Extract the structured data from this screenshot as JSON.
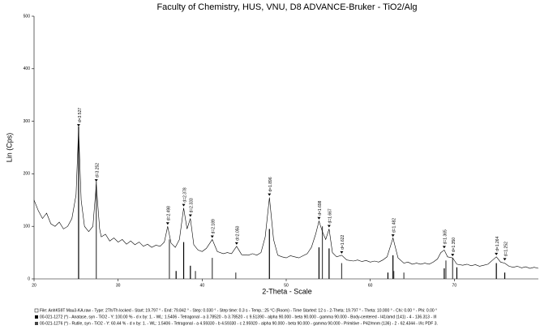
{
  "chart_data": {
    "type": "line",
    "title": "Faculty of Chemistry, HUS, VNU, D8 ADVANCE-Bruker - TiO2/Alg",
    "xlabel": "2-Theta - Scale",
    "ylabel": "Lin (Cps)",
    "xlim": [
      20,
      80
    ],
    "xticks": [
      20,
      30,
      40,
      50,
      60,
      70
    ],
    "ylim": [
      0,
      500
    ],
    "yticks": [
      0,
      100,
      200,
      300,
      400,
      500
    ],
    "color": "#000000",
    "x": [
      20,
      20.5,
      21,
      21.5,
      22,
      22.5,
      23,
      23.5,
      24,
      24.5,
      25,
      25.3,
      25.6,
      26,
      26.5,
      27,
      27.4,
      27.8,
      28,
      28.5,
      29,
      29.5,
      30,
      30.5,
      31,
      31.5,
      32,
      32.5,
      33,
      33.5,
      34,
      34.5,
      35,
      35.5,
      35.9,
      36.3,
      36.8,
      37.3,
      37.8,
      38.2,
      38.6,
      39,
      39.5,
      40,
      40.5,
      41.2,
      41.8,
      42.5,
      43,
      43.5,
      44.1,
      44.7,
      45.5,
      46,
      46.5,
      47,
      47.5,
      48,
      48.5,
      49,
      49.5,
      50,
      50.5,
      51,
      51.5,
      52,
      52.5,
      53,
      53.5,
      53.9,
      54.3,
      54.7,
      55.1,
      55.5,
      56,
      56.6,
      57.2,
      58,
      58.5,
      59,
      59.5,
      60,
      60.5,
      61,
      61.5,
      62,
      62.7,
      63.3,
      64,
      64.5,
      65,
      65.5,
      66,
      66.5,
      67,
      67.5,
      68,
      68.4,
      68.8,
      69.2,
      69.8,
      70.3,
      71,
      71.5,
      72,
      72.5,
      73,
      73.5,
      74,
      74.5,
      75,
      75.5,
      76,
      76.5,
      77,
      77.5,
      78,
      78.5,
      79,
      79.5,
      80
    ],
    "values": [
      150,
      130,
      115,
      125,
      105,
      100,
      108,
      95,
      100,
      115,
      160,
      285,
      150,
      100,
      90,
      100,
      180,
      95,
      80,
      85,
      72,
      78,
      70,
      75,
      66,
      72,
      65,
      70,
      62,
      66,
      60,
      64,
      62,
      70,
      100,
      68,
      60,
      75,
      135,
      95,
      115,
      65,
      55,
      52,
      58,
      75,
      52,
      48,
      50,
      48,
      62,
      46,
      45,
      48,
      45,
      50,
      80,
      155,
      75,
      45,
      42,
      40,
      44,
      42,
      40,
      44,
      48,
      60,
      85,
      110,
      90,
      75,
      95,
      50,
      42,
      45,
      36,
      34,
      36,
      33,
      35,
      32,
      34,
      32,
      36,
      42,
      78,
      40,
      30,
      32,
      28,
      30,
      28,
      30,
      28,
      32,
      38,
      50,
      55,
      42,
      40,
      28,
      26,
      28,
      25,
      27,
      24,
      26,
      28,
      35,
      42,
      32,
      30,
      24,
      22,
      24,
      21,
      23,
      20,
      22,
      20
    ],
    "references": [
      {
        "name": "00-021-1272 (*) - Anatase, syn - TiO2 - Y: 100.00 % - d x by: 1. - WL: 1.5406 - Tetragonal - a 3.78520 - b 3.78520 - c 9.51390 - alpha 90.000 - beta 90.000 - gamma 90.000 - Body-centered - I41/amd (141) - 4 - 136.313 - I/I",
        "color": "#000000",
        "x": [
          25.3,
          36.9,
          37.8,
          38.6,
          48.0,
          53.9,
          55.1,
          62.1,
          62.7,
          68.8,
          70.3,
          75.0,
          76.0
        ],
        "values": [
          290,
          15,
          70,
          25,
          95,
          60,
          58,
          12,
          45,
          20,
          22,
          30,
          12
        ]
      },
      {
        "name": "00-021-1276 (*) - Rutile, syn - TiO2 - Y: 60.44 % - d x by: 1. - WL: 1.5406 - Tetragonal - a 4.59330 - b 4.59330 - c 2.95920 - alpha 90.000 - beta 90.000 - gamma 90.000 - Primitive - P42/mnm (136) - 2 - 62.4344 - I/Ic PDF 3.",
        "color": "#444444",
        "x": [
          27.4,
          36.1,
          39.2,
          41.2,
          44.0,
          54.3,
          56.6,
          62.8,
          64.0,
          69.0,
          69.8
        ],
        "values": [
          185,
          75,
          15,
          40,
          12,
          100,
          30,
          15,
          12,
          35,
          40
        ]
      }
    ],
    "annotations": [
      {
        "x": 25.3,
        "y": 290,
        "label": "d=3.527"
      },
      {
        "x": 27.4,
        "y": 185,
        "label": "d=3.252"
      },
      {
        "x": 35.9,
        "y": 103,
        "label": "d=2.498"
      },
      {
        "x": 37.8,
        "y": 138,
        "label": "d=2.378"
      },
      {
        "x": 38.6,
        "y": 118,
        "label": "d=2.333"
      },
      {
        "x": 41.2,
        "y": 78,
        "label": "d=2.189"
      },
      {
        "x": 44.1,
        "y": 65,
        "label": "d=2.050"
      },
      {
        "x": 48.0,
        "y": 158,
        "label": "d=1.896"
      },
      {
        "x": 53.9,
        "y": 113,
        "label": "d=1.698"
      },
      {
        "x": 55.1,
        "y": 98,
        "label": "d=1.667"
      },
      {
        "x": 56.6,
        "y": 48,
        "label": "d=1.622"
      },
      {
        "x": 62.7,
        "y": 80,
        "label": "d=1.482"
      },
      {
        "x": 68.8,
        "y": 58,
        "label": "d=1.365"
      },
      {
        "x": 69.8,
        "y": 43,
        "label": "d=1.350"
      },
      {
        "x": 75.0,
        "y": 45,
        "label": "d=1.264"
      },
      {
        "x": 76.0,
        "y": 35,
        "label": "d=1.252"
      }
    ],
    "file_info": "File: AnhK59T Mau3-KA.raw - Type: 2Th/Th locked - Start: 19.797 ° - End: 79.842 ° - Step: 0.030 ° - Step time: 0.3 s - Temp.: 25 °C (Room) - Time Started: 12 s - 2-Theta: 19.797 ° - Theta: 10.000 ° - Chi: 0.00 ° - Phi: 0.00 °"
  }
}
